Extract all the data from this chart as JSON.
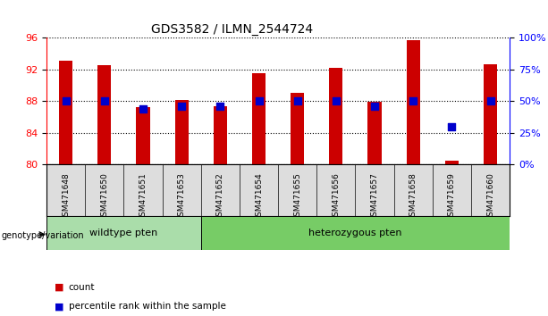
{
  "title": "GDS3582 / ILMN_2544724",
  "samples": [
    "GSM471648",
    "GSM471650",
    "GSM471651",
    "GSM471653",
    "GSM471652",
    "GSM471654",
    "GSM471655",
    "GSM471656",
    "GSM471657",
    "GSM471658",
    "GSM471659",
    "GSM471660"
  ],
  "count_values": [
    93.1,
    92.5,
    87.2,
    88.1,
    87.3,
    91.5,
    89.0,
    92.2,
    87.9,
    95.7,
    80.5,
    92.7
  ],
  "percentile_values": [
    50,
    50,
    44,
    46,
    46,
    50,
    50,
    50,
    46,
    50,
    30,
    50
  ],
  "bar_color": "#cc0000",
  "dot_color": "#0000cc",
  "ylim_left": [
    80,
    96
  ],
  "ylim_right": [
    0,
    100
  ],
  "yticks_left": [
    80,
    84,
    88,
    92,
    96
  ],
  "yticks_right": [
    0,
    25,
    50,
    75,
    100
  ],
  "ytick_labels_right": [
    "0%",
    "25%",
    "50%",
    "75%",
    "100%"
  ],
  "wildtype_samples": [
    "GSM471648",
    "GSM471650",
    "GSM471651",
    "GSM471653"
  ],
  "heterozygous_samples": [
    "GSM471652",
    "GSM471654",
    "GSM471655",
    "GSM471656",
    "GSM471657",
    "GSM471658",
    "GSM471659",
    "GSM471660"
  ],
  "wildtype_label": "wildtype pten",
  "heterozygous_label": "heterozygous pten",
  "genotype_label": "genotype/variation",
  "legend_count_label": "count",
  "legend_percentile_label": "percentile rank within the sample",
  "wildtype_color": "#aaddaa",
  "heterozygous_color": "#77cc66",
  "bar_bottom": 80,
  "bar_width": 0.35,
  "percentile_dot_size": 35
}
